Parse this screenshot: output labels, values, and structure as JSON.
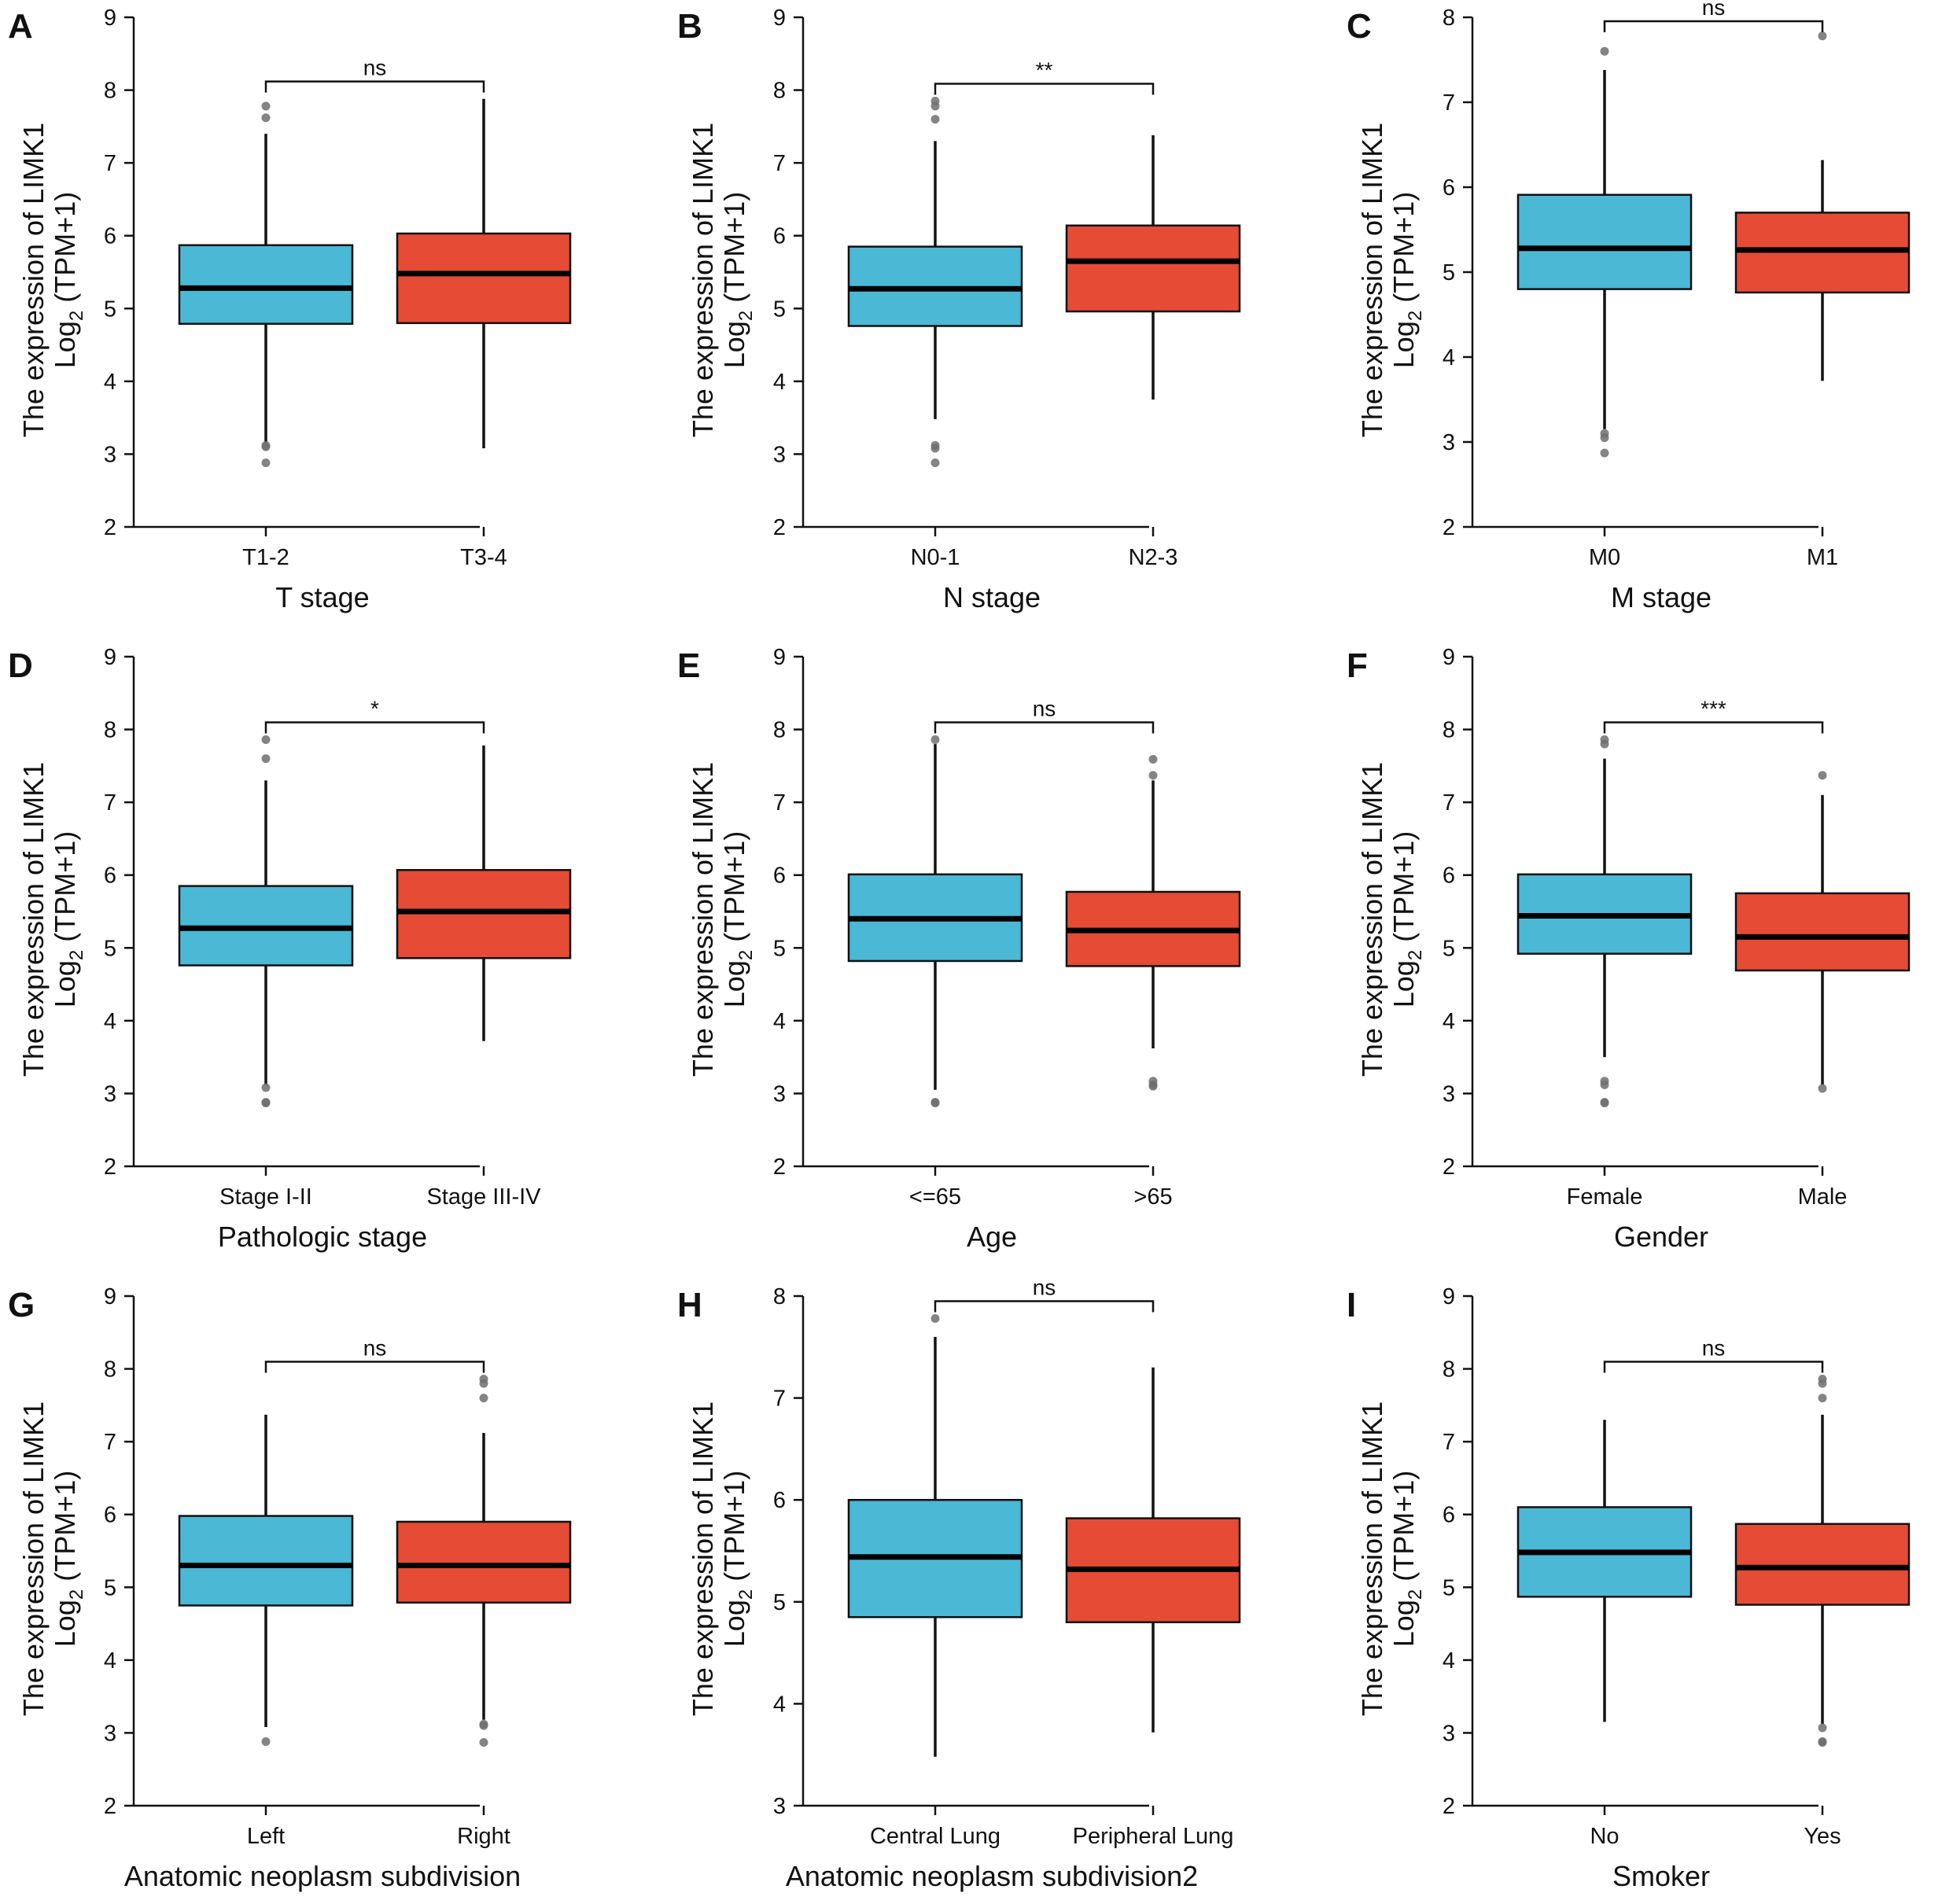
{
  "colors": {
    "group1": "#4bb8d6",
    "group2": "#e64b35",
    "outlier": "#6e6e6e"
  },
  "y_axis_label": {
    "line1": "The expression of LIMK1",
    "line2_prefix": "Log",
    "line2_sub": "2",
    "line2_suffix": " (TPM+1)"
  },
  "chart_data": [
    {
      "panel": "A",
      "type": "boxplot",
      "xlabel": "T stage",
      "ylim": [
        2,
        9
      ],
      "yticks": [
        2,
        3,
        4,
        5,
        6,
        7,
        8,
        9
      ],
      "significance": "ns",
      "groups": [
        {
          "name": "T1-2",
          "q1": 4.79,
          "median": 5.28,
          "q3": 5.87,
          "whisker_low": 3.15,
          "whisker_high": 7.4,
          "outliers": [
            7.78,
            7.62,
            3.12,
            3.1,
            2.88
          ]
        },
        {
          "name": "T3-4",
          "q1": 4.8,
          "median": 5.48,
          "q3": 6.03,
          "whisker_low": 3.08,
          "whisker_high": 7.88,
          "outliers": []
        }
      ]
    },
    {
      "panel": "B",
      "type": "boxplot",
      "xlabel": "N stage",
      "ylim": [
        2,
        9
      ],
      "yticks": [
        2,
        3,
        4,
        5,
        6,
        7,
        8,
        9
      ],
      "significance": "**",
      "groups": [
        {
          "name": "N0-1",
          "q1": 4.76,
          "median": 5.27,
          "q3": 5.85,
          "whisker_low": 3.48,
          "whisker_high": 7.3,
          "outliers": [
            7.85,
            7.78,
            7.6,
            3.12,
            3.08,
            2.88
          ]
        },
        {
          "name": "N2-3",
          "q1": 4.96,
          "median": 5.65,
          "q3": 6.14,
          "whisker_low": 3.75,
          "whisker_high": 7.38,
          "outliers": []
        }
      ]
    },
    {
      "panel": "C",
      "type": "boxplot",
      "xlabel": "M stage",
      "ylim": [
        2,
        8
      ],
      "yticks": [
        2,
        3,
        4,
        5,
        6,
        7,
        8
      ],
      "significance": "ns",
      "groups": [
        {
          "name": "M0",
          "q1": 4.8,
          "median": 5.28,
          "q3": 5.91,
          "whisker_low": 3.15,
          "whisker_high": 7.38,
          "outliers": [
            7.6,
            3.1,
            3.05,
            2.87
          ]
        },
        {
          "name": "M1",
          "q1": 4.76,
          "median": 5.26,
          "q3": 5.7,
          "whisker_low": 3.72,
          "whisker_high": 6.32,
          "outliers": [
            7.78
          ]
        }
      ]
    },
    {
      "panel": "D",
      "type": "boxplot",
      "xlabel": "Pathologic stage",
      "ylim": [
        2,
        9
      ],
      "yticks": [
        2,
        3,
        4,
        5,
        6,
        7,
        8,
        9
      ],
      "significance": "*",
      "groups": [
        {
          "name": "Stage I-II",
          "q1": 4.76,
          "median": 5.27,
          "q3": 5.85,
          "whisker_low": 3.12,
          "whisker_high": 7.3,
          "outliers": [
            7.86,
            7.6,
            3.08,
            2.88,
            2.87
          ]
        },
        {
          "name": "Stage III-IV",
          "q1": 4.86,
          "median": 5.5,
          "q3": 6.07,
          "whisker_low": 3.72,
          "whisker_high": 7.78,
          "outliers": []
        }
      ]
    },
    {
      "panel": "E",
      "type": "boxplot",
      "xlabel": "Age",
      "ylim": [
        2,
        9
      ],
      "yticks": [
        2,
        3,
        4,
        5,
        6,
        7,
        8,
        9
      ],
      "significance": "ns",
      "groups": [
        {
          "name": "<=65",
          "q1": 4.82,
          "median": 5.4,
          "q3": 6.01,
          "whisker_low": 3.05,
          "whisker_high": 7.8,
          "outliers": [
            7.86,
            2.88,
            2.87
          ]
        },
        {
          "name": ">65",
          "q1": 4.75,
          "median": 5.24,
          "q3": 5.77,
          "whisker_low": 3.62,
          "whisker_high": 7.3,
          "outliers": [
            7.59,
            7.37,
            3.17,
            3.12,
            3.1
          ]
        }
      ]
    },
    {
      "panel": "F",
      "type": "boxplot",
      "xlabel": "Gender",
      "ylim": [
        2,
        9
      ],
      "yticks": [
        2,
        3,
        4,
        5,
        6,
        7,
        8,
        9
      ],
      "significance": "***",
      "groups": [
        {
          "name": "Female",
          "q1": 4.92,
          "median": 5.44,
          "q3": 6.01,
          "whisker_low": 3.5,
          "whisker_high": 7.6,
          "outliers": [
            7.86,
            7.8,
            3.17,
            3.12,
            2.88,
            2.87
          ]
        },
        {
          "name": "Male",
          "q1": 4.69,
          "median": 5.15,
          "q3": 5.75,
          "whisker_low": 3.12,
          "whisker_high": 7.1,
          "outliers": [
            7.37,
            3.07
          ]
        }
      ]
    },
    {
      "panel": "G",
      "type": "boxplot",
      "xlabel": "Anatomic neoplasm subdivision",
      "ylim": [
        2,
        9
      ],
      "yticks": [
        2,
        3,
        4,
        5,
        6,
        7,
        8,
        9
      ],
      "significance": "ns",
      "groups": [
        {
          "name": "Left",
          "q1": 4.75,
          "median": 5.3,
          "q3": 5.98,
          "whisker_low": 3.08,
          "whisker_high": 7.37,
          "outliers": [
            2.88
          ]
        },
        {
          "name": "Right",
          "q1": 4.79,
          "median": 5.3,
          "q3": 5.9,
          "whisker_low": 3.18,
          "whisker_high": 7.12,
          "outliers": [
            7.86,
            7.8,
            7.6,
            3.12,
            3.1,
            2.87
          ]
        }
      ]
    },
    {
      "panel": "H",
      "type": "boxplot",
      "xlabel": "Anatomic neoplasm subdivision2",
      "ylim": [
        3,
        8
      ],
      "yticks": [
        3,
        4,
        5,
        6,
        7,
        8
      ],
      "significance": "ns",
      "groups": [
        {
          "name": "Central Lung",
          "q1": 4.85,
          "median": 5.44,
          "q3": 6.0,
          "whisker_low": 3.48,
          "whisker_high": 7.6,
          "outliers": [
            7.78
          ]
        },
        {
          "name": "Peripheral Lung",
          "q1": 4.8,
          "median": 5.32,
          "q3": 5.82,
          "whisker_low": 3.72,
          "whisker_high": 7.3,
          "outliers": []
        }
      ]
    },
    {
      "panel": "I",
      "type": "boxplot",
      "xlabel": "Smoker",
      "ylim": [
        2,
        9
      ],
      "yticks": [
        2,
        3,
        4,
        5,
        6,
        7,
        8,
        9
      ],
      "significance": "ns",
      "groups": [
        {
          "name": "No",
          "q1": 4.87,
          "median": 5.48,
          "q3": 6.1,
          "whisker_low": 3.15,
          "whisker_high": 7.3,
          "outliers": []
        },
        {
          "name": "Yes",
          "q1": 4.76,
          "median": 5.27,
          "q3": 5.87,
          "whisker_low": 3.12,
          "whisker_high": 7.37,
          "outliers": [
            7.86,
            7.8,
            7.6,
            3.07,
            2.88,
            2.87
          ]
        }
      ]
    }
  ]
}
